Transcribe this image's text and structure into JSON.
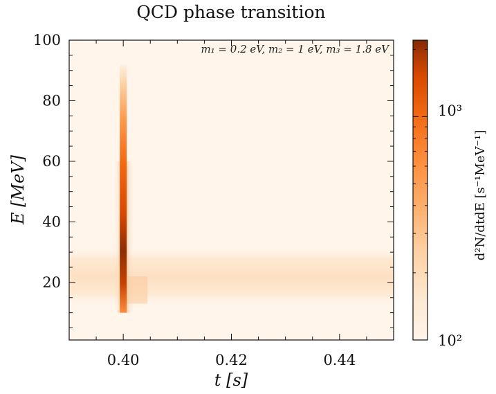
{
  "chart_data": {
    "type": "heatmap",
    "title": "QCD phase transition",
    "annotation": "m₁ = 0.2 eV,  m₂ = 1 eV,  m₃ = 1.8 eV",
    "xlabel": "t [s]",
    "ylabel": "E [MeV]",
    "xlim": [
      0.39,
      0.45
    ],
    "ylim": [
      1,
      100
    ],
    "x_ticks": [
      0.4,
      0.42,
      0.44
    ],
    "x_tick_labels": [
      "0.40",
      "0.42",
      "0.44"
    ],
    "y_ticks": [
      20,
      40,
      60,
      80,
      100
    ],
    "y_tick_labels": [
      "20",
      "40",
      "60",
      "80",
      "100"
    ],
    "colorbar": {
      "label": "d²N/dtdE [s⁻¹MeV⁻¹]",
      "scale": "log",
      "range": [
        100,
        2200
      ],
      "tick_values": [
        100,
        1000
      ],
      "tick_labels": [
        "10²",
        "10³"
      ],
      "colormap": "Oranges",
      "color_low": "#fff5eb",
      "color_high": "#7f2704"
    },
    "features": [
      {
        "kind": "background_band",
        "t_range": [
          0.39,
          0.45
        ],
        "E_center": 22,
        "E_halfwidth": 7,
        "peak_value": 180
      },
      {
        "kind": "spike",
        "t_center": 0.4,
        "E_range": [
          10,
          92
        ],
        "E_peak": 30,
        "peak_value": 2200
      }
    ]
  }
}
